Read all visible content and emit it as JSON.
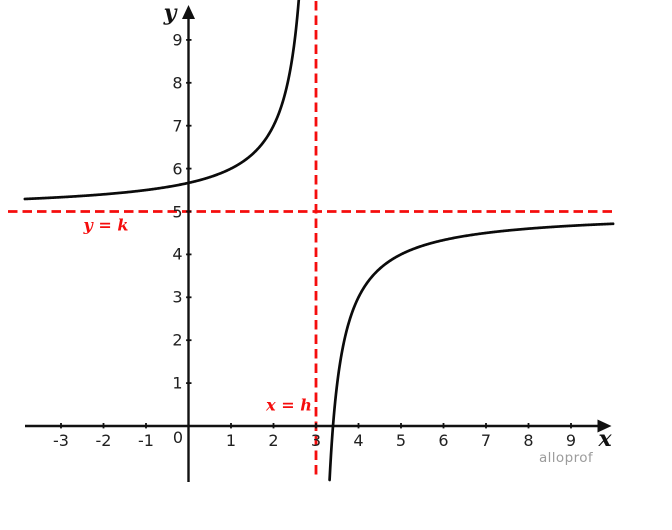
{
  "chart_data": {
    "type": "line",
    "title": "",
    "xlabel": "x",
    "ylabel": "y",
    "grid": false,
    "legend": null,
    "x_ticks": [
      -3,
      -2,
      -1,
      0,
      1,
      2,
      3,
      4,
      5,
      6,
      7,
      8,
      9
    ],
    "y_ticks": [
      1,
      2,
      3,
      4,
      5,
      6,
      7,
      8,
      9
    ],
    "xlim": [
      -3.85,
      9.99
    ],
    "ylim": [
      -1.26,
      9.93
    ],
    "function": {
      "formula": "y = k + a/(x - h)",
      "a": -2,
      "h": 3,
      "k": 5
    },
    "asymptotes": {
      "vertical": {
        "x": 3,
        "label": "x = h"
      },
      "horizontal": {
        "y": 5,
        "label": "y = k"
      }
    },
    "colors": {
      "curve": "#0b0b0b",
      "axis": "#111111",
      "asymptote": "#f50d0d",
      "tick_text": "#212121",
      "watermark": "#9c9c9c"
    },
    "watermark": "alloprof"
  }
}
